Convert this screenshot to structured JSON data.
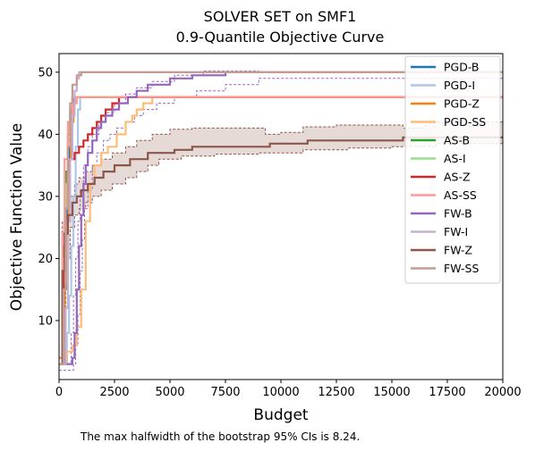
{
  "chart_data": {
    "type": "line",
    "title_line1": "SOLVER SET on SMF1",
    "title_line2": "0.9-Quantile Objective Curve",
    "xlabel": "Budget",
    "ylabel": "Objective Function Value",
    "footnote": "The max halfwidth of the bootstrap 95% CIs is 8.24.",
    "xlim": [
      0,
      20000
    ],
    "ylim": [
      0.5,
      53
    ],
    "xticks": [
      0,
      2500,
      5000,
      7500,
      10000,
      12500,
      15000,
      17500,
      20000
    ],
    "yticks": [
      10,
      20,
      30,
      40,
      50
    ],
    "legend_position": "upper-right",
    "grid": false,
    "series": [
      {
        "name": "PGD-B",
        "color": "#1f77b4",
        "points": [
          [
            0,
            3
          ],
          [
            150,
            3
          ],
          [
            250,
            15
          ],
          [
            350,
            28
          ],
          [
            450,
            38
          ],
          [
            550,
            44
          ],
          [
            650,
            46
          ],
          [
            20000,
            46
          ]
        ]
      },
      {
        "name": "PGD-I",
        "color": "#aec7e8",
        "points": [
          [
            0,
            3
          ],
          [
            250,
            3
          ],
          [
            350,
            8
          ],
          [
            450,
            14
          ],
          [
            550,
            22
          ],
          [
            650,
            30
          ],
          [
            750,
            38
          ],
          [
            850,
            44
          ],
          [
            950,
            46
          ],
          [
            20000,
            46
          ]
        ]
      },
      {
        "name": "PGD-Z",
        "color": "#ff7f0e",
        "points": [
          [
            0,
            4
          ],
          [
            150,
            4
          ],
          [
            250,
            16
          ],
          [
            350,
            26
          ],
          [
            450,
            36
          ],
          [
            550,
            42
          ],
          [
            650,
            45
          ],
          [
            750,
            46
          ],
          [
            20000,
            46
          ]
        ]
      },
      {
        "name": "PGD-SS",
        "color": "#ffbb78",
        "points": [
          [
            0,
            3
          ],
          [
            300,
            3
          ],
          [
            350,
            5
          ],
          [
            500,
            5
          ],
          [
            600,
            6
          ],
          [
            800,
            9
          ],
          [
            1000,
            15
          ],
          [
            1200,
            26
          ],
          [
            1400,
            32
          ],
          [
            1600,
            35
          ],
          [
            1900,
            37
          ],
          [
            2200,
            38
          ],
          [
            2600,
            40
          ],
          [
            3000,
            42
          ],
          [
            3300,
            43
          ],
          [
            3500,
            44
          ],
          [
            3800,
            45
          ],
          [
            4200,
            46
          ],
          [
            20000,
            46
          ]
        ]
      },
      {
        "name": "AS-B",
        "color": "#2ca02c",
        "points": [
          [
            0,
            4
          ],
          [
            100,
            4
          ],
          [
            200,
            22
          ],
          [
            300,
            34
          ],
          [
            400,
            40
          ],
          [
            500,
            44
          ],
          [
            600,
            46
          ],
          [
            20000,
            46
          ]
        ]
      },
      {
        "name": "AS-I",
        "color": "#98df8a",
        "points": [
          [
            0,
            4
          ],
          [
            100,
            4
          ],
          [
            200,
            20
          ],
          [
            300,
            32
          ],
          [
            400,
            39
          ],
          [
            500,
            43
          ],
          [
            600,
            46
          ],
          [
            20000,
            46
          ]
        ]
      },
      {
        "name": "AS-Z",
        "color": "#d62728",
        "points": [
          [
            0,
            4
          ],
          [
            100,
            4
          ],
          [
            200,
            18
          ],
          [
            300,
            28
          ],
          [
            400,
            34
          ],
          [
            500,
            36
          ],
          [
            700,
            37
          ],
          [
            900,
            38
          ],
          [
            1100,
            39
          ],
          [
            1300,
            40
          ],
          [
            1500,
            41
          ],
          [
            1700,
            42
          ],
          [
            1900,
            43
          ],
          [
            2100,
            44
          ],
          [
            2400,
            45
          ],
          [
            2700,
            46
          ],
          [
            20000,
            46
          ]
        ]
      },
      {
        "name": "AS-SS",
        "color": "#ff9896",
        "points": [
          [
            0,
            4
          ],
          [
            100,
            4
          ],
          [
            150,
            24
          ],
          [
            250,
            36
          ],
          [
            400,
            42
          ],
          [
            600,
            45
          ],
          [
            800,
            46
          ],
          [
            20000,
            46
          ]
        ]
      },
      {
        "name": "FW-B",
        "color": "#9467bd",
        "points": [
          [
            0,
            3
          ],
          [
            500,
            3
          ],
          [
            600,
            4
          ],
          [
            700,
            8
          ],
          [
            800,
            15
          ],
          [
            900,
            22
          ],
          [
            1000,
            27
          ],
          [
            1100,
            32
          ],
          [
            1200,
            35
          ],
          [
            1300,
            37
          ],
          [
            1500,
            39
          ],
          [
            1700,
            41
          ],
          [
            1900,
            42
          ],
          [
            2100,
            43
          ],
          [
            2400,
            44
          ],
          [
            2700,
            45
          ],
          [
            3100,
            46
          ],
          [
            3500,
            47
          ],
          [
            4000,
            48
          ],
          [
            5000,
            49
          ],
          [
            6000,
            49.5
          ],
          [
            7500,
            50
          ],
          [
            20000,
            50
          ]
        ]
      },
      {
        "name": "FW-I",
        "color": "#c5b0d5",
        "points": [
          [
            0,
            3
          ],
          [
            200,
            3
          ],
          [
            300,
            12
          ],
          [
            400,
            26
          ],
          [
            500,
            36
          ],
          [
            600,
            43
          ],
          [
            700,
            47
          ],
          [
            800,
            49
          ],
          [
            900,
            50
          ],
          [
            20000,
            50
          ]
        ]
      },
      {
        "name": "FW-Z",
        "color": "#8c564b",
        "points": [
          [
            0,
            3
          ],
          [
            100,
            3
          ],
          [
            150,
            18
          ],
          [
            250,
            24
          ],
          [
            400,
            27
          ],
          [
            600,
            29
          ],
          [
            800,
            30
          ],
          [
            1000,
            31
          ],
          [
            1300,
            32
          ],
          [
            1600,
            33
          ],
          [
            2000,
            34
          ],
          [
            2500,
            35
          ],
          [
            3200,
            36
          ],
          [
            4000,
            37
          ],
          [
            5200,
            37.5
          ],
          [
            6000,
            38
          ],
          [
            9200,
            38
          ],
          [
            9500,
            38.5
          ],
          [
            11000,
            38.5
          ],
          [
            11200,
            39
          ],
          [
            15300,
            39
          ],
          [
            15500,
            39.5
          ],
          [
            19500,
            39.5
          ],
          [
            20000,
            39.5
          ]
        ]
      },
      {
        "name": "FW-SS",
        "color": "#c49c94",
        "points": [
          [
            0,
            3
          ],
          [
            100,
            3
          ],
          [
            200,
            15
          ],
          [
            300,
            28
          ],
          [
            400,
            38
          ],
          [
            500,
            45
          ],
          [
            600,
            48
          ],
          [
            800,
            49.5
          ],
          [
            1000,
            50
          ],
          [
            20000,
            50
          ]
        ]
      }
    ],
    "fwz_ci_upper": [
      [
        0,
        3
      ],
      [
        150,
        26
      ],
      [
        300,
        28
      ],
      [
        500,
        30
      ],
      [
        700,
        32
      ],
      [
        900,
        33
      ],
      [
        1200,
        34
      ],
      [
        1500,
        35
      ],
      [
        1900,
        36
      ],
      [
        2400,
        37
      ],
      [
        3000,
        38
      ],
      [
        3500,
        39
      ],
      [
        4200,
        40
      ],
      [
        5000,
        40.8
      ],
      [
        6000,
        41
      ],
      [
        9000,
        41
      ],
      [
        9300,
        40
      ],
      [
        10000,
        40.3
      ],
      [
        11000,
        41.2
      ],
      [
        12500,
        41.5
      ],
      [
        15500,
        41
      ],
      [
        16500,
        42
      ],
      [
        20000,
        42
      ]
    ],
    "fwz_ci_lower": [
      [
        0,
        3
      ],
      [
        150,
        10
      ],
      [
        300,
        20
      ],
      [
        500,
        25
      ],
      [
        700,
        27
      ],
      [
        900,
        28
      ],
      [
        1200,
        29
      ],
      [
        1500,
        30
      ],
      [
        1900,
        31
      ],
      [
        2400,
        32
      ],
      [
        3000,
        33
      ],
      [
        3500,
        34
      ],
      [
        4000,
        35
      ],
      [
        4500,
        36
      ],
      [
        5500,
        36.5
      ],
      [
        7000,
        36.8
      ],
      [
        9000,
        37
      ],
      [
        11000,
        37.5
      ],
      [
        13000,
        37.8
      ],
      [
        15000,
        38
      ],
      [
        17000,
        38.5
      ],
      [
        20000,
        39
      ]
    ],
    "fwb_ci_upper": [
      [
        0,
        3
      ],
      [
        450,
        3
      ],
      [
        550,
        8
      ],
      [
        650,
        14
      ],
      [
        750,
        20
      ],
      [
        850,
        26
      ],
      [
        950,
        31
      ],
      [
        1100,
        35
      ],
      [
        1300,
        38
      ],
      [
        1500,
        40
      ],
      [
        1800,
        42
      ],
      [
        2100,
        43.5
      ],
      [
        2500,
        45
      ],
      [
        3000,
        46.5
      ],
      [
        3500,
        47.5
      ],
      [
        4200,
        48.5
      ],
      [
        5200,
        49.5
      ],
      [
        6500,
        50.2
      ],
      [
        9000,
        50.2
      ]
    ],
    "fwb_ci_lower": [
      [
        0,
        2
      ],
      [
        550,
        2
      ],
      [
        650,
        3
      ],
      [
        750,
        6
      ],
      [
        850,
        11
      ],
      [
        950,
        18
      ],
      [
        1050,
        23
      ],
      [
        1150,
        28
      ],
      [
        1300,
        31
      ],
      [
        1500,
        35
      ],
      [
        1700,
        37
      ],
      [
        2000,
        39
      ],
      [
        2300,
        40
      ],
      [
        2600,
        41
      ],
      [
        3000,
        42
      ],
      [
        3400,
        43
      ],
      [
        3800,
        44
      ],
      [
        4400,
        45
      ],
      [
        5200,
        46
      ],
      [
        6200,
        47
      ],
      [
        7500,
        48
      ],
      [
        9000,
        49
      ],
      [
        20000,
        49.5
      ]
    ]
  }
}
